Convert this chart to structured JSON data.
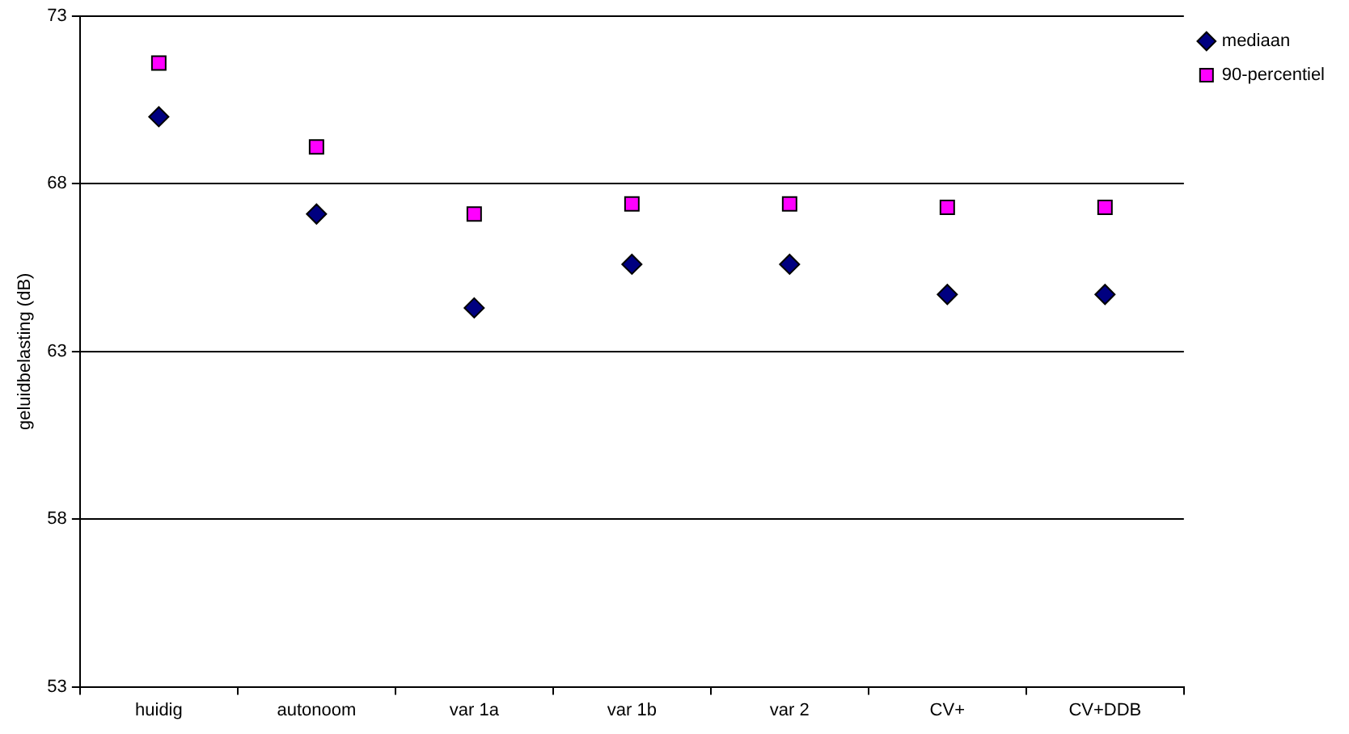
{
  "chart_data": {
    "type": "scatter",
    "ylabel": "geluidbelasting (dB)",
    "categories": [
      "huidig",
      "autonoom",
      "var 1a",
      "var 1b",
      "var 2",
      "CV+",
      "CV+DDB"
    ],
    "series": [
      {
        "name": "mediaan",
        "color": "#000080",
        "marker": "diamond",
        "values": [
          70.0,
          67.1,
          64.3,
          65.6,
          65.6,
          64.7,
          64.7
        ]
      },
      {
        "name": "90-percentiel",
        "color": "#ff00ff",
        "marker": "square",
        "values": [
          71.6,
          69.1,
          67.1,
          67.4,
          67.4,
          67.3,
          67.3
        ]
      }
    ],
    "ylim": [
      53,
      73
    ],
    "yticks": [
      53,
      58,
      63,
      68,
      73
    ],
    "grid": "y",
    "legend": "top right"
  }
}
